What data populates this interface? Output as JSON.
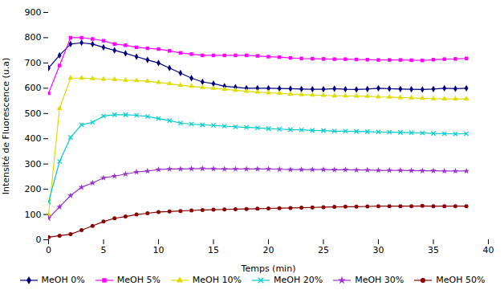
{
  "chart_data": {
    "type": "line",
    "xlabel": "Temps (min)",
    "ylabel": "Intensité de Fluorescence (u.a)",
    "xlim": [
      0,
      40
    ],
    "ylim": [
      0,
      900
    ],
    "xticks": [
      0,
      5,
      10,
      15,
      20,
      25,
      30,
      35,
      40
    ],
    "yticks": [
      0,
      100,
      200,
      300,
      400,
      500,
      600,
      700,
      800,
      900
    ],
    "grid": false,
    "legend": "bottom",
    "x": [
      0,
      1,
      2,
      3,
      4,
      5,
      6,
      7,
      8,
      9,
      10,
      11,
      12,
      13,
      14,
      15,
      16,
      17,
      18,
      19,
      20,
      21,
      22,
      23,
      24,
      25,
      26,
      27,
      28,
      29,
      30,
      31,
      32,
      33,
      34,
      35,
      36,
      37,
      38
    ],
    "series": [
      {
        "name": "MeOH 0%",
        "color": "#000080",
        "marker": "diamond",
        "values": [
          680,
          730,
          775,
          780,
          775,
          762,
          750,
          738,
          725,
          712,
          700,
          680,
          660,
          640,
          625,
          618,
          608,
          604,
          600,
          600,
          600,
          599,
          598,
          597,
          596,
          596,
          598,
          596,
          595,
          597,
          600,
          598,
          597,
          596,
          595,
          597,
          600,
          598,
          600
        ]
      },
      {
        "name": "MeOH 5%",
        "color": "#FF00FF",
        "marker": "square",
        "values": [
          580,
          690,
          800,
          800,
          795,
          788,
          775,
          770,
          762,
          758,
          755,
          748,
          740,
          735,
          730,
          730,
          730,
          730,
          730,
          728,
          725,
          723,
          720,
          718,
          717,
          716,
          715,
          715,
          714,
          713,
          712,
          712,
          712,
          711,
          710,
          713,
          715,
          716,
          718
        ]
      },
      {
        "name": "MeOH 10%",
        "color": "#DDDD00",
        "marker": "triangle",
        "values": [
          100,
          520,
          640,
          640,
          638,
          636,
          635,
          632,
          630,
          628,
          623,
          618,
          612,
          608,
          603,
          600,
          596,
          592,
          588,
          585,
          582,
          580,
          577,
          575,
          573,
          572,
          570,
          570,
          569,
          568,
          566,
          565,
          563,
          562,
          560,
          559,
          558,
          558,
          558
        ]
      },
      {
        "name": "MeOH 20%",
        "color": "#00CCCC",
        "marker": "cross",
        "values": [
          150,
          310,
          405,
          455,
          465,
          490,
          495,
          495,
          493,
          488,
          480,
          472,
          462,
          458,
          455,
          453,
          450,
          447,
          445,
          443,
          440,
          438,
          436,
          435,
          433,
          432,
          430,
          430,
          429,
          428,
          427,
          426,
          425,
          424,
          423,
          421,
          420,
          419,
          420
        ]
      },
      {
        "name": "MeOH 30%",
        "color": "#9933CC",
        "marker": "star",
        "values": [
          85,
          130,
          175,
          208,
          225,
          245,
          252,
          260,
          268,
          272,
          278,
          280,
          280,
          281,
          282,
          281,
          280,
          280,
          280,
          280,
          280,
          279,
          278,
          278,
          278,
          278,
          277,
          277,
          276,
          276,
          275,
          275,
          275,
          274,
          273,
          273,
          272,
          272,
          272
        ]
      },
      {
        "name": "MeOH 50%",
        "color": "#8B0000",
        "marker": "circle",
        "values": [
          10,
          16,
          22,
          38,
          55,
          72,
          85,
          92,
          100,
          105,
          110,
          112,
          114,
          116,
          118,
          119,
          120,
          121,
          122,
          123,
          124,
          125,
          126,
          127,
          128,
          129,
          130,
          131,
          131,
          132,
          133,
          133,
          133,
          133,
          134,
          133,
          133,
          133,
          133
        ]
      }
    ]
  }
}
